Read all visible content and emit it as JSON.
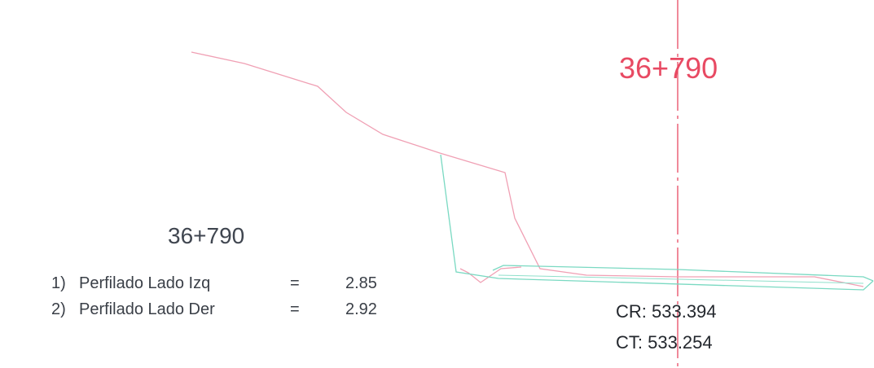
{
  "station_label": "36+790",
  "table": {
    "station": "36+790",
    "rows": [
      {
        "num": "1)",
        "label": "Perfilado Lado Izq",
        "eq": "=",
        "value": "2.85"
      },
      {
        "num": "2)",
        "label": "Perfilado Lado Der",
        "eq": "=",
        "value": "2.92"
      }
    ]
  },
  "elevations": {
    "cr": "CR: 533.394",
    "ct": "CT: 533.254"
  },
  "colors": {
    "terrain_line": "#f0a0b4",
    "section_line": "#7ad9c2",
    "axis_line": "#e84a63",
    "station_text": "#e84a63"
  }
}
